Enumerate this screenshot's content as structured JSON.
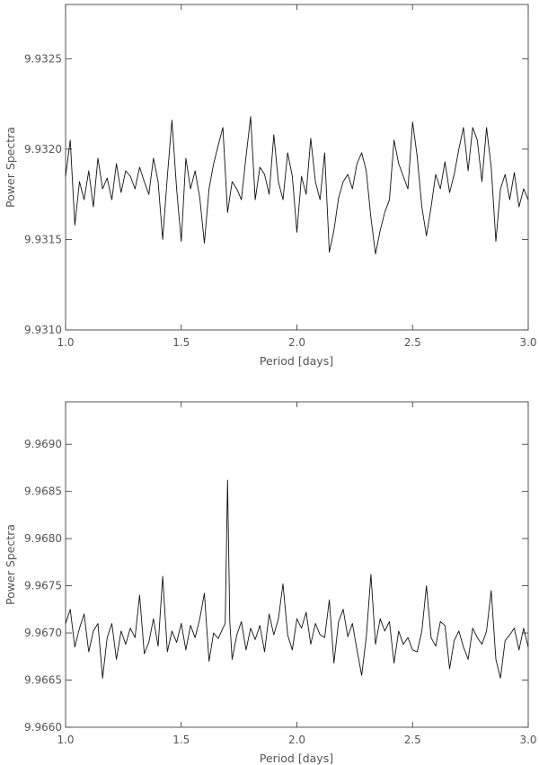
{
  "chart_data": [
    {
      "type": "line",
      "xlabel": "Period [days]",
      "ylabel": "Power Spectra",
      "xlim": [
        1.0,
        3.0
      ],
      "ylim": [
        9.931,
        9.9328
      ],
      "xticks": [
        1.0,
        1.5,
        2.0,
        2.5,
        3.0
      ],
      "xtick_labels": [
        "1.0",
        "1.5",
        "2.0",
        "2.5",
        "3.0"
      ],
      "yticks": [
        9.931,
        9.9315,
        9.932,
        9.9325
      ],
      "ytick_labels": [
        "9.9310",
        "9.9315",
        "9.9320",
        "9.9325"
      ],
      "grid": false,
      "series": [
        {
          "x": [
            1.0,
            1.02,
            1.04,
            1.06,
            1.08,
            1.1,
            1.12,
            1.14,
            1.16,
            1.18,
            1.2,
            1.22,
            1.24,
            1.26,
            1.28,
            1.3,
            1.32,
            1.34,
            1.36,
            1.38,
            1.4,
            1.42,
            1.44,
            1.46,
            1.48,
            1.5,
            1.52,
            1.54,
            1.56,
            1.58,
            1.6,
            1.62,
            1.64,
            1.66,
            1.68,
            1.7,
            1.72,
            1.74,
            1.76,
            1.78,
            1.8,
            1.82,
            1.84,
            1.86,
            1.88,
            1.9,
            1.92,
            1.94,
            1.96,
            1.98,
            2.0,
            2.02,
            2.04,
            2.06,
            2.08,
            2.1,
            2.12,
            2.14,
            2.16,
            2.18,
            2.2,
            2.22,
            2.24,
            2.26,
            2.28,
            2.3,
            2.32,
            2.34,
            2.36,
            2.38,
            2.4,
            2.42,
            2.44,
            2.46,
            2.48,
            2.5,
            2.52,
            2.54,
            2.56,
            2.58,
            2.6,
            2.62,
            2.64,
            2.66,
            2.68,
            2.7,
            2.72,
            2.74,
            2.76,
            2.78,
            2.8,
            2.82,
            2.84,
            2.86,
            2.88,
            2.9,
            2.92,
            2.94,
            2.96,
            2.98,
            3.0
          ],
          "y": [
            9.93185,
            9.93205,
            9.93158,
            9.93182,
            9.93172,
            9.93188,
            9.93168,
            9.93195,
            9.93178,
            9.93184,
            9.93172,
            9.93192,
            9.93176,
            9.93188,
            9.93185,
            9.93178,
            9.9319,
            9.93182,
            9.93175,
            9.93195,
            9.93182,
            9.9315,
            9.93185,
            9.93216,
            9.93178,
            9.93149,
            9.93195,
            9.93178,
            9.93188,
            9.93173,
            9.93148,
            9.93178,
            9.93192,
            9.93202,
            9.93212,
            9.93165,
            9.93182,
            9.93178,
            9.93172,
            9.93196,
            9.93218,
            9.93172,
            9.9319,
            9.93186,
            9.93175,
            9.93208,
            9.93182,
            9.93172,
            9.93198,
            9.93185,
            9.93154,
            9.93185,
            9.93175,
            9.93206,
            9.93182,
            9.93172,
            9.93198,
            9.93143,
            9.93155,
            9.93173,
            9.93182,
            9.93186,
            9.93178,
            9.93192,
            9.93198,
            9.93188,
            9.93162,
            9.93142,
            9.93155,
            9.93165,
            9.93172,
            9.93205,
            9.93192,
            9.93185,
            9.93178,
            9.93215,
            9.93196,
            9.93168,
            9.93152,
            9.93168,
            9.93186,
            9.93178,
            9.93193,
            9.93176,
            9.93186,
            9.932,
            9.93212,
            9.93188,
            9.93212,
            9.93205,
            9.93182,
            9.93212,
            9.9319,
            9.93149,
            9.93178,
            9.93186,
            9.93172,
            9.93187,
            9.93168,
            9.93178,
            9.93172
          ]
        }
      ]
    },
    {
      "type": "line",
      "xlabel": "Period [days]",
      "ylabel": "Power Spectra",
      "xlim": [
        1.0,
        3.0
      ],
      "ylim": [
        9.966,
        9.96945
      ],
      "xticks": [
        1.0,
        1.5,
        2.0,
        2.5,
        3.0
      ],
      "xtick_labels": [
        "1.0",
        "1.5",
        "2.0",
        "2.5",
        "3.0"
      ],
      "yticks": [
        9.966,
        9.9665,
        9.967,
        9.9675,
        9.968,
        9.9685,
        9.969
      ],
      "ytick_labels": [
        "9.9660",
        "9.9665",
        "9.9670",
        "9.9675",
        "9.9680",
        "9.9685",
        "9.9690"
      ],
      "grid": false,
      "series": [
        {
          "x": [
            1.0,
            1.02,
            1.04,
            1.06,
            1.08,
            1.1,
            1.12,
            1.14,
            1.16,
            1.18,
            1.2,
            1.22,
            1.24,
            1.26,
            1.28,
            1.3,
            1.32,
            1.34,
            1.36,
            1.38,
            1.4,
            1.42,
            1.44,
            1.46,
            1.48,
            1.5,
            1.52,
            1.54,
            1.56,
            1.58,
            1.6,
            1.62,
            1.64,
            1.66,
            1.68,
            1.69,
            1.7,
            1.71,
            1.72,
            1.74,
            1.76,
            1.78,
            1.8,
            1.82,
            1.84,
            1.86,
            1.88,
            1.9,
            1.92,
            1.94,
            1.96,
            1.98,
            2.0,
            2.02,
            2.04,
            2.06,
            2.08,
            2.1,
            2.12,
            2.14,
            2.16,
            2.18,
            2.2,
            2.22,
            2.24,
            2.26,
            2.28,
            2.3,
            2.32,
            2.34,
            2.36,
            2.38,
            2.4,
            2.42,
            2.44,
            2.46,
            2.48,
            2.5,
            2.52,
            2.54,
            2.56,
            2.58,
            2.6,
            2.62,
            2.64,
            2.66,
            2.68,
            2.7,
            2.72,
            2.74,
            2.76,
            2.78,
            2.8,
            2.82,
            2.84,
            2.86,
            2.88,
            2.9,
            2.92,
            2.94,
            2.96,
            2.98,
            3.0
          ],
          "y": [
            9.9671,
            9.96725,
            9.96685,
            9.96705,
            9.9672,
            9.9668,
            9.96702,
            9.9671,
            9.96652,
            9.96695,
            9.9671,
            9.96672,
            9.96702,
            9.96688,
            9.96705,
            9.96695,
            9.9674,
            9.96678,
            9.9669,
            9.96715,
            9.96686,
            9.9676,
            9.9668,
            9.96702,
            9.9669,
            9.9671,
            9.96682,
            9.96708,
            9.96695,
            9.96715,
            9.96742,
            9.9667,
            9.967,
            9.96694,
            9.96705,
            9.9671,
            9.96862,
            9.96712,
            9.96672,
            9.96698,
            9.96712,
            9.96682,
            9.96705,
            9.96693,
            9.96708,
            9.9668,
            9.9672,
            9.96698,
            9.96715,
            9.96752,
            9.96698,
            9.96682,
            9.96715,
            9.96705,
            9.96722,
            9.96688,
            9.9671,
            9.96698,
            9.96695,
            9.96735,
            9.96668,
            9.96712,
            9.96725,
            9.96696,
            9.9671,
            9.96682,
            9.96655,
            9.96695,
            9.96762,
            9.96688,
            9.96715,
            9.96702,
            9.96712,
            9.96668,
            9.96702,
            9.96688,
            9.96695,
            9.96682,
            9.9668,
            9.96702,
            9.9675,
            9.96695,
            9.96686,
            9.96712,
            9.96708,
            9.96662,
            9.96692,
            9.96702,
            9.96685,
            9.96672,
            9.96705,
            9.96695,
            9.96688,
            9.96702,
            9.96745,
            9.96672,
            9.96652,
            9.96692,
            9.96698,
            9.96705,
            9.96682,
            9.96705,
            9.96685
          ]
        }
      ]
    }
  ]
}
